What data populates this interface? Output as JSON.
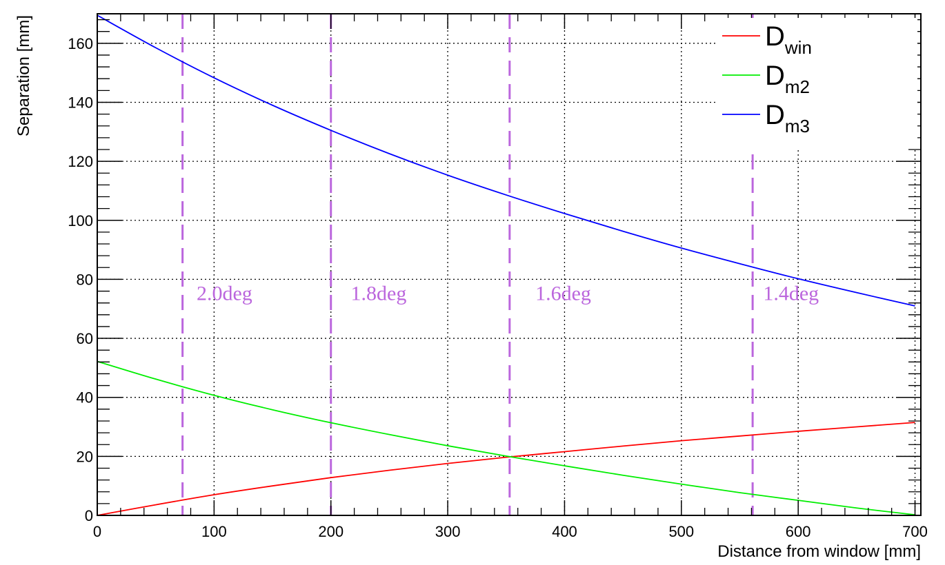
{
  "chart_data": {
    "type": "line",
    "xlabel": "Distance from window [mm]",
    "ylabel": "Separation [mm]",
    "xlim": [
      0,
      705
    ],
    "ylim": [
      0,
      170
    ],
    "xticks": [
      0,
      100,
      200,
      300,
      400,
      500,
      600,
      700
    ],
    "yticks": [
      0,
      20,
      40,
      60,
      80,
      100,
      120,
      140,
      160
    ],
    "grid": true,
    "legend_position": "top-right",
    "series": [
      {
        "name": "D",
        "subscript": "win",
        "color": "#ff0000",
        "x": [
          0,
          50,
          100,
          150,
          200,
          250,
          300,
          350,
          400,
          450,
          500,
          550,
          600,
          650,
          700
        ],
        "y": [
          0,
          3.6,
          7.0,
          10.0,
          12.8,
          15.3,
          17.6,
          19.7,
          21.6,
          23.5,
          25.3,
          26.9,
          28.5,
          30.0,
          31.5
        ]
      },
      {
        "name": "D",
        "subscript": "m2",
        "color": "#00ee00",
        "x": [
          0,
          50,
          100,
          150,
          200,
          250,
          300,
          350,
          400,
          450,
          500,
          550,
          600,
          650,
          700
        ],
        "y": [
          52.2,
          46.2,
          40.7,
          35.8,
          31.4,
          27.4,
          23.6,
          20.1,
          16.8,
          13.6,
          10.6,
          7.7,
          5.1,
          2.5,
          0.2
        ]
      },
      {
        "name": "D",
        "subscript": "m3",
        "color": "#0000ff",
        "x": [
          0,
          50,
          100,
          150,
          200,
          250,
          300,
          350,
          400,
          450,
          500,
          550,
          600,
          650,
          700
        ],
        "y": [
          169.5,
          158.5,
          148.3,
          139.0,
          130.5,
          122.6,
          115.3,
          108.6,
          102.3,
          96.3,
          90.6,
          85.3,
          80.2,
          75.5,
          71.0
        ]
      }
    ],
    "reference_lines": {
      "color": "#bb66dd",
      "x": [
        73,
        200,
        353,
        561
      ]
    },
    "annotations": [
      {
        "text": "2.0deg",
        "x": 85,
        "y": 73
      },
      {
        "text": "1.8deg",
        "x": 217,
        "y": 73
      },
      {
        "text": "1.6deg",
        "x": 375,
        "y": 73
      },
      {
        "text": "1.4deg",
        "x": 570,
        "y": 73
      }
    ]
  }
}
